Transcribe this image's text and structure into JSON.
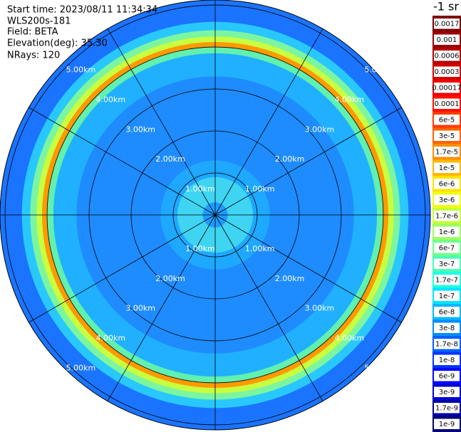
{
  "header": {
    "lines": [
      "Start time: 2023/08/11 11:34:34",
      "WLS200s-181",
      "Field: BETA",
      "Elevation(deg): 35.30",
      "NRays: 120"
    ]
  },
  "plot": {
    "range_rings": [
      {
        "value": 1,
        "label": "1.00km"
      },
      {
        "value": 2,
        "label": "2.00km"
      },
      {
        "value": 3,
        "label": "3.00km"
      },
      {
        "value": 4,
        "label": "4.00km"
      },
      {
        "value": 5,
        "label": "5.00km"
      }
    ],
    "max_range_km": 5.12,
    "field_bins": {
      "edges_km": [
        0,
        0.3,
        0.9,
        1.3,
        3.3,
        3.85,
        4.0,
        4.12,
        4.25,
        4.4,
        4.6,
        5.12
      ],
      "colors": [
        "#1e9bff",
        "#3fd4f2",
        "#1ea8ff",
        "#1e8cff",
        "#20b0ff",
        "#60f0b0",
        "#ff9a00",
        "#c8ff40",
        "#7cf5a0",
        "#28c8ff",
        "#1a74ff"
      ]
    }
  },
  "colorbar": {
    "unit": "-1 sr",
    "labels": [
      "0.0017",
      "0.001",
      "0.0006",
      "0.0003",
      "0.00017",
      "0.0001",
      "6e-5",
      "3e-5",
      "1.7e-5",
      "1e-5",
      "6e-6",
      "3e-6",
      "1.7e-6",
      "1e-6",
      "6e-7",
      "3e-7",
      "1.7e-7",
      "1e-7",
      "6e-8",
      "3e-8",
      "1.7e-8",
      "1e-8",
      "6e-9",
      "3e-9",
      "1.7e-9",
      "1e-9"
    ],
    "colors": [
      "#800000",
      "#9b0000",
      "#b60000",
      "#d20000",
      "#ed0000",
      "#ff1000",
      "#ff3a00",
      "#ff6400",
      "#ff8e00",
      "#ffb800",
      "#ffe200",
      "#f0ff0e",
      "#c6ff38",
      "#9cff62",
      "#72ff8c",
      "#48ffb6",
      "#1effe0",
      "#00e4ff",
      "#00b8ff",
      "#008cff",
      "#0060ff",
      "#0034ff",
      "#0008ff",
      "#0000d2",
      "#0000a6",
      "#00007a"
    ]
  }
}
